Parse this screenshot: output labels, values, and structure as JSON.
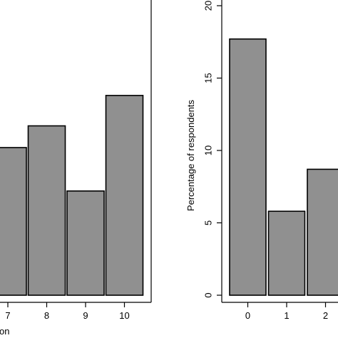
{
  "chart_data": [
    {
      "type": "bar",
      "categories": [
        "7",
        "8",
        "9",
        "10"
      ],
      "values": [
        10.2,
        11.7,
        7.2,
        13.8
      ],
      "ylim": [
        0,
        20
      ],
      "xlabel": "on",
      "ylabel": "",
      "bar_color": "#909090",
      "grid": false
    },
    {
      "type": "bar",
      "categories": [
        "0",
        "1",
        "2"
      ],
      "values": [
        17.7,
        5.8,
        8.7
      ],
      "ylim": [
        0,
        20
      ],
      "yticks": [
        "0",
        "5",
        "10",
        "15",
        "20"
      ],
      "xlabel": "",
      "ylabel": "Percentage of respondents",
      "bar_color": "#909090",
      "grid": false
    }
  ]
}
